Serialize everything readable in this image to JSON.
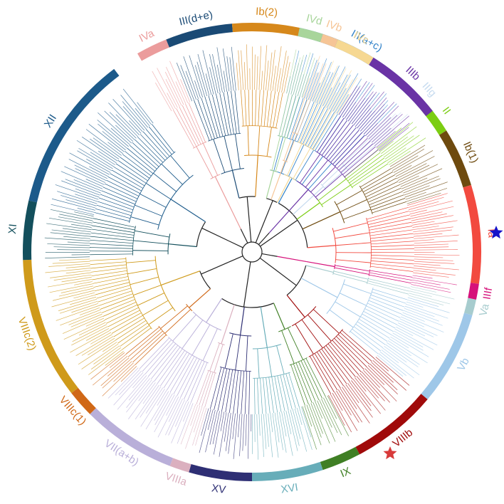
{
  "figure": {
    "clades": [
      {
        "label": "III(a+c)",
        "start": 12,
        "end": 45,
        "color": "#3182c9"
      },
      {
        "label": "IIIg",
        "start": 45,
        "end": 50,
        "color": "#c6dbef"
      },
      {
        "label": "II",
        "start": 50,
        "end": 58,
        "color": "#7ccd12"
      },
      {
        "label": "Ib(1)",
        "start": 58,
        "end": 73,
        "color": "#6e4a0e"
      },
      {
        "label": "Ia",
        "start": 73,
        "end": 98,
        "color": "#f24a3f"
      },
      {
        "label": "IIIf",
        "start": 98,
        "end": 102,
        "color": "#d6117a"
      },
      {
        "label": "Va",
        "start": 102,
        "end": 106,
        "color": "#a7ccce"
      },
      {
        "label": "Vb",
        "start": 106,
        "end": 130,
        "color": "#9ec7e8"
      },
      {
        "label": "VIIIb",
        "start": 130,
        "end": 152,
        "color": "#a00a0a"
      },
      {
        "label": "IX",
        "start": 152,
        "end": 162,
        "color": "#3f7f24"
      },
      {
        "label": "XVI",
        "start": 162,
        "end": 180,
        "color": "#67adb9"
      },
      {
        "label": "XV",
        "start": 180,
        "end": 196,
        "color": "#2e2f74"
      },
      {
        "label": "VIIIa",
        "start": 196,
        "end": 201,
        "color": "#dbb0bf"
      },
      {
        "label": "VII(a+b)",
        "start": 201,
        "end": 225,
        "color": "#b9afd9"
      },
      {
        "label": "VIIIc(1)",
        "start": 225,
        "end": 232,
        "color": "#d06817"
      },
      {
        "label": "VIIIc(2)",
        "start": 232,
        "end": 268,
        "color": "#cf9a1a"
      },
      {
        "label": "XI",
        "start": 268,
        "end": 283,
        "color": "#134f5c"
      },
      {
        "label": "XII",
        "start": 283,
        "end": 323,
        "color": "#1c5a8a"
      },
      {
        "label": "IVa",
        "start": 330,
        "end": 338,
        "color": "#eb9c9c"
      },
      {
        "label": "III(d+e)",
        "start": 338,
        "end": 355,
        "color": "#1a4a75"
      },
      {
        "label": "Ib(2)",
        "start": 355,
        "end": 372,
        "color": "#d6881b"
      },
      {
        "label": "IVd",
        "start": 372,
        "end": 378,
        "color": "#a8d59b"
      },
      {
        "label": "IVb",
        "start": 378,
        "end": 382,
        "color": "#f6c596"
      },
      {
        "label": "IVc",
        "start": 382,
        "end": 392,
        "color": "#f6d892"
      },
      {
        "label": "IIIb",
        "start": 392,
        "end": 412,
        "color": "#6a33a5"
      }
    ],
    "markers": [
      {
        "name": "blue-star",
        "color": "#1512c9"
      },
      {
        "name": "red-star",
        "color": "#d83a3a"
      }
    ]
  }
}
